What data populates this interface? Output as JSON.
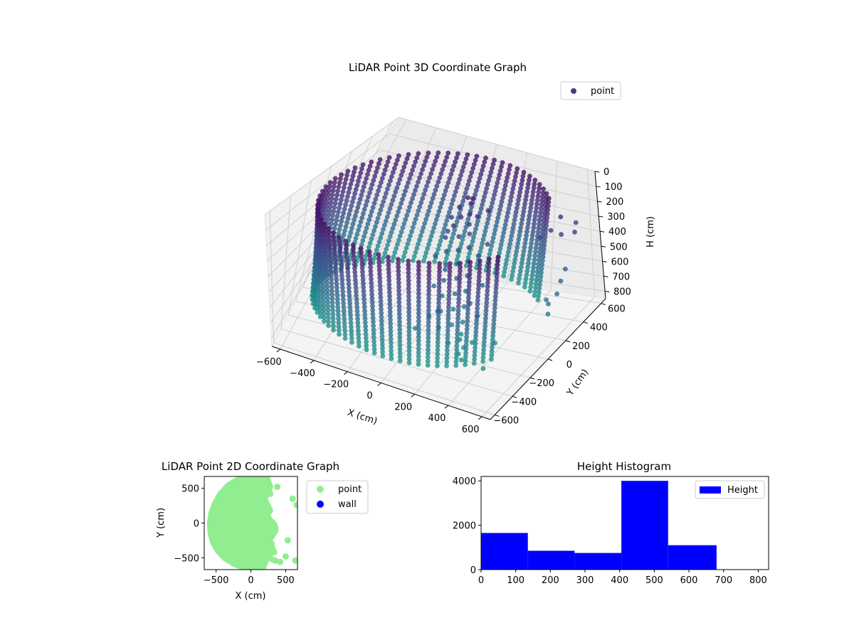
{
  "figure": {
    "background": "#ffffff"
  },
  "chart_data": [
    {
      "type": "scatter",
      "projection": "3d",
      "title": "LiDAR Point 3D Coordinate Graph",
      "xlabel": "X (cm)",
      "ylabel": "Y (cm)",
      "zlabel": "H (cm)",
      "xlim": [
        -650,
        650
      ],
      "ylim": [
        -650,
        650
      ],
      "zlim": [
        0,
        850
      ],
      "z_inverted": true,
      "xticks": [
        -600,
        -400,
        -200,
        0,
        200,
        400,
        600
      ],
      "yticks": [
        -600,
        -400,
        -200,
        0,
        200,
        400,
        600
      ],
      "zticks": [
        0,
        100,
        200,
        300,
        400,
        500,
        600,
        700,
        800
      ],
      "colormap": "viridis",
      "legend": {
        "position": "top-right",
        "entries": [
          {
            "label": "point",
            "color": "#3f3f8a"
          }
        ]
      },
      "series": [
        {
          "name": "point",
          "wall_shell": {
            "radius": 620,
            "theta_start_deg": 38,
            "theta_end_deg": 332,
            "h_range": [
              80,
              740
            ]
          },
          "interior_cluster": [
            [
              60,
              260,
              130
            ],
            [
              90,
              240,
              150
            ],
            [
              40,
              210,
              170
            ],
            [
              110,
              200,
              190
            ],
            [
              70,
              180,
              210
            ],
            [
              130,
              160,
              230
            ],
            [
              50,
              140,
              250
            ],
            [
              150,
              130,
              270
            ],
            [
              100,
              110,
              290
            ],
            [
              30,
              100,
              310
            ],
            [
              170,
              90,
              330
            ],
            [
              120,
              70,
              350
            ],
            [
              60,
              60,
              370
            ],
            [
              190,
              50,
              390
            ],
            [
              140,
              30,
              410
            ],
            [
              80,
              20,
              430
            ],
            [
              210,
              0,
              450
            ],
            [
              160,
              -20,
              470
            ],
            [
              100,
              -40,
              490
            ],
            [
              230,
              -60,
              510
            ],
            [
              180,
              -80,
              530
            ],
            [
              120,
              -100,
              550
            ],
            [
              250,
              -120,
              570
            ],
            [
              200,
              -140,
              590
            ],
            [
              140,
              -160,
              610
            ],
            [
              270,
              -180,
              630
            ],
            [
              220,
              -200,
              650
            ],
            [
              160,
              -230,
              670
            ],
            [
              290,
              -260,
              690
            ],
            [
              240,
              -290,
              710
            ],
            [
              200,
              230,
              160
            ],
            [
              20,
              170,
              220
            ],
            [
              260,
              120,
              300
            ],
            [
              10,
              40,
              400
            ],
            [
              300,
              -10,
              480
            ],
            [
              60,
              -70,
              520
            ],
            [
              330,
              -130,
              600
            ],
            [
              90,
              -190,
              640
            ],
            [
              350,
              -240,
              700
            ],
            [
              310,
              -320,
              740
            ],
            [
              80,
              280,
              140
            ],
            [
              150,
              210,
              200
            ],
            [
              30,
              120,
              280
            ],
            [
              230,
              80,
              360
            ],
            [
              90,
              -10,
              440
            ],
            [
              270,
              -90,
              560
            ],
            [
              120,
              -150,
              620
            ],
            [
              280,
              -220,
              680
            ],
            [
              40,
              -250,
              700
            ],
            [
              320,
              -280,
              720
            ]
          ],
          "outliers": [
            [
              600,
              480,
              260
            ],
            [
              630,
              400,
              270
            ],
            [
              650,
              230,
              410
            ],
            [
              660,
              150,
              440
            ],
            [
              670,
              80,
              480
            ],
            [
              640,
              40,
              530
            ],
            [
              660,
              -10,
              560
            ],
            [
              620,
              60,
              520
            ],
            [
              600,
              300,
              240
            ],
            [
              560,
              380,
              180
            ],
            [
              540,
              300,
              230
            ],
            [
              500,
              250,
              260
            ],
            [
              480,
              -250,
              660
            ],
            [
              520,
              -480,
              680
            ],
            [
              360,
              -400,
              720
            ]
          ]
        }
      ]
    },
    {
      "type": "scatter",
      "title": "LiDAR Point 2D Coordinate Graph",
      "xlabel": "X (cm)",
      "ylabel": "Y (cm)",
      "xlim": [
        -670,
        670
      ],
      "ylim": [
        -670,
        670
      ],
      "xticks": [
        -500,
        0,
        500
      ],
      "yticks": [
        -500,
        0,
        500
      ],
      "legend": {
        "position": "outside-right",
        "entries": [
          {
            "label": "point",
            "color": "#90ee90"
          },
          {
            "label": "wall",
            "color": "#0000ff"
          }
        ]
      },
      "series": [
        {
          "name": "point",
          "color": "#90ee90",
          "outline": [
            [
              240,
              630
            ],
            [
              180,
              660
            ],
            [
              80,
              670
            ],
            [
              -60,
              660
            ],
            [
              -200,
              620
            ],
            [
              -330,
              540
            ],
            [
              -440,
              420
            ],
            [
              -520,
              280
            ],
            [
              -570,
              140
            ],
            [
              -590,
              0
            ],
            [
              -580,
              -150
            ],
            [
              -540,
              -290
            ],
            [
              -470,
              -410
            ],
            [
              -370,
              -510
            ],
            [
              -240,
              -590
            ],
            [
              -100,
              -640
            ],
            [
              60,
              -660
            ],
            [
              180,
              -640
            ],
            [
              210,
              -560
            ],
            [
              250,
              -470
            ],
            [
              290,
              -430
            ],
            [
              340,
              -420
            ],
            [
              300,
              -340
            ],
            [
              240,
              -270
            ],
            [
              300,
              -200
            ],
            [
              360,
              -100
            ],
            [
              340,
              -20
            ],
            [
              280,
              40
            ],
            [
              230,
              110
            ],
            [
              280,
              180
            ],
            [
              240,
              260
            ],
            [
              200,
              340
            ],
            [
              230,
              430
            ],
            [
              280,
              520
            ],
            [
              240,
              630
            ]
          ],
          "scattered_points": [
            [
              380,
              520
            ],
            [
              280,
              420
            ],
            [
              600,
              350
            ],
            [
              660,
              260
            ],
            [
              530,
              -250
            ],
            [
              500,
              -480
            ],
            [
              640,
              -540
            ],
            [
              420,
              -560
            ],
            [
              350,
              -540
            ],
            [
              300,
              -520
            ],
            [
              260,
              -480
            ],
            [
              300,
              -300
            ],
            [
              240,
              560
            ]
          ]
        },
        {
          "name": "wall",
          "color": "#0000ff",
          "points": []
        }
      ]
    },
    {
      "type": "bar",
      "title": "Height Histogram",
      "xlabel": "",
      "ylabel": "",
      "xlim": [
        0,
        830
      ],
      "ylim": [
        0,
        4200
      ],
      "xticks": [
        0,
        100,
        200,
        300,
        400,
        500,
        600,
        700,
        800
      ],
      "yticks": [
        0,
        2000,
        4000
      ],
      "bin_edges": [
        0,
        135,
        270,
        405,
        540,
        680
      ],
      "values": [
        1650,
        850,
        750,
        4000,
        1100
      ],
      "color": "#0000ff",
      "legend": {
        "position": "top-right",
        "entries": [
          {
            "label": "Height",
            "color": "#0000ff"
          }
        ]
      }
    }
  ]
}
